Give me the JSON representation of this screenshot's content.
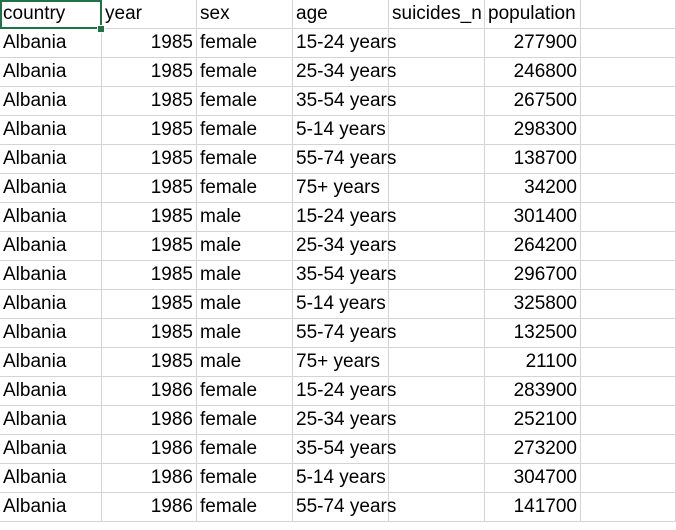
{
  "sheet": {
    "headers": [
      "country",
      "year",
      "sex",
      "age",
      "suicides_no",
      "population"
    ],
    "header_visible": [
      "country",
      "year",
      "sex",
      "age",
      "suicides_n",
      "population"
    ],
    "rows": [
      [
        "Albania",
        "1985",
        "female",
        "15-24 years",
        "",
        "277900"
      ],
      [
        "Albania",
        "1985",
        "female",
        "25-34 years",
        "",
        "246800"
      ],
      [
        "Albania",
        "1985",
        "female",
        "35-54 years",
        "",
        "267500"
      ],
      [
        "Albania",
        "1985",
        "female",
        "5-14 years",
        "",
        "298300"
      ],
      [
        "Albania",
        "1985",
        "female",
        "55-74 years",
        "",
        "138700"
      ],
      [
        "Albania",
        "1985",
        "female",
        "75+ years",
        "",
        "34200"
      ],
      [
        "Albania",
        "1985",
        "male",
        "15-24 years",
        "",
        "301400"
      ],
      [
        "Albania",
        "1985",
        "male",
        "25-34 years",
        "",
        "264200"
      ],
      [
        "Albania",
        "1985",
        "male",
        "35-54 years",
        "",
        "296700"
      ],
      [
        "Albania",
        "1985",
        "male",
        "5-14 years",
        "",
        "325800"
      ],
      [
        "Albania",
        "1985",
        "male",
        "55-74 years",
        "",
        "132500"
      ],
      [
        "Albania",
        "1985",
        "male",
        "75+ years",
        "",
        "21100"
      ],
      [
        "Albania",
        "1986",
        "female",
        "15-24 years",
        "",
        "283900"
      ],
      [
        "Albania",
        "1986",
        "female",
        "25-34 years",
        "",
        "252100"
      ],
      [
        "Albania",
        "1986",
        "female",
        "35-54 years",
        "",
        "273200"
      ],
      [
        "Albania",
        "1986",
        "female",
        "5-14 years",
        "",
        "304700"
      ],
      [
        "Albania",
        "1986",
        "female",
        "55-74 years",
        "",
        "141700"
      ]
    ],
    "selected_cell": "country",
    "accent_color": "#217346",
    "gridline_color": "#d4d4d4"
  }
}
